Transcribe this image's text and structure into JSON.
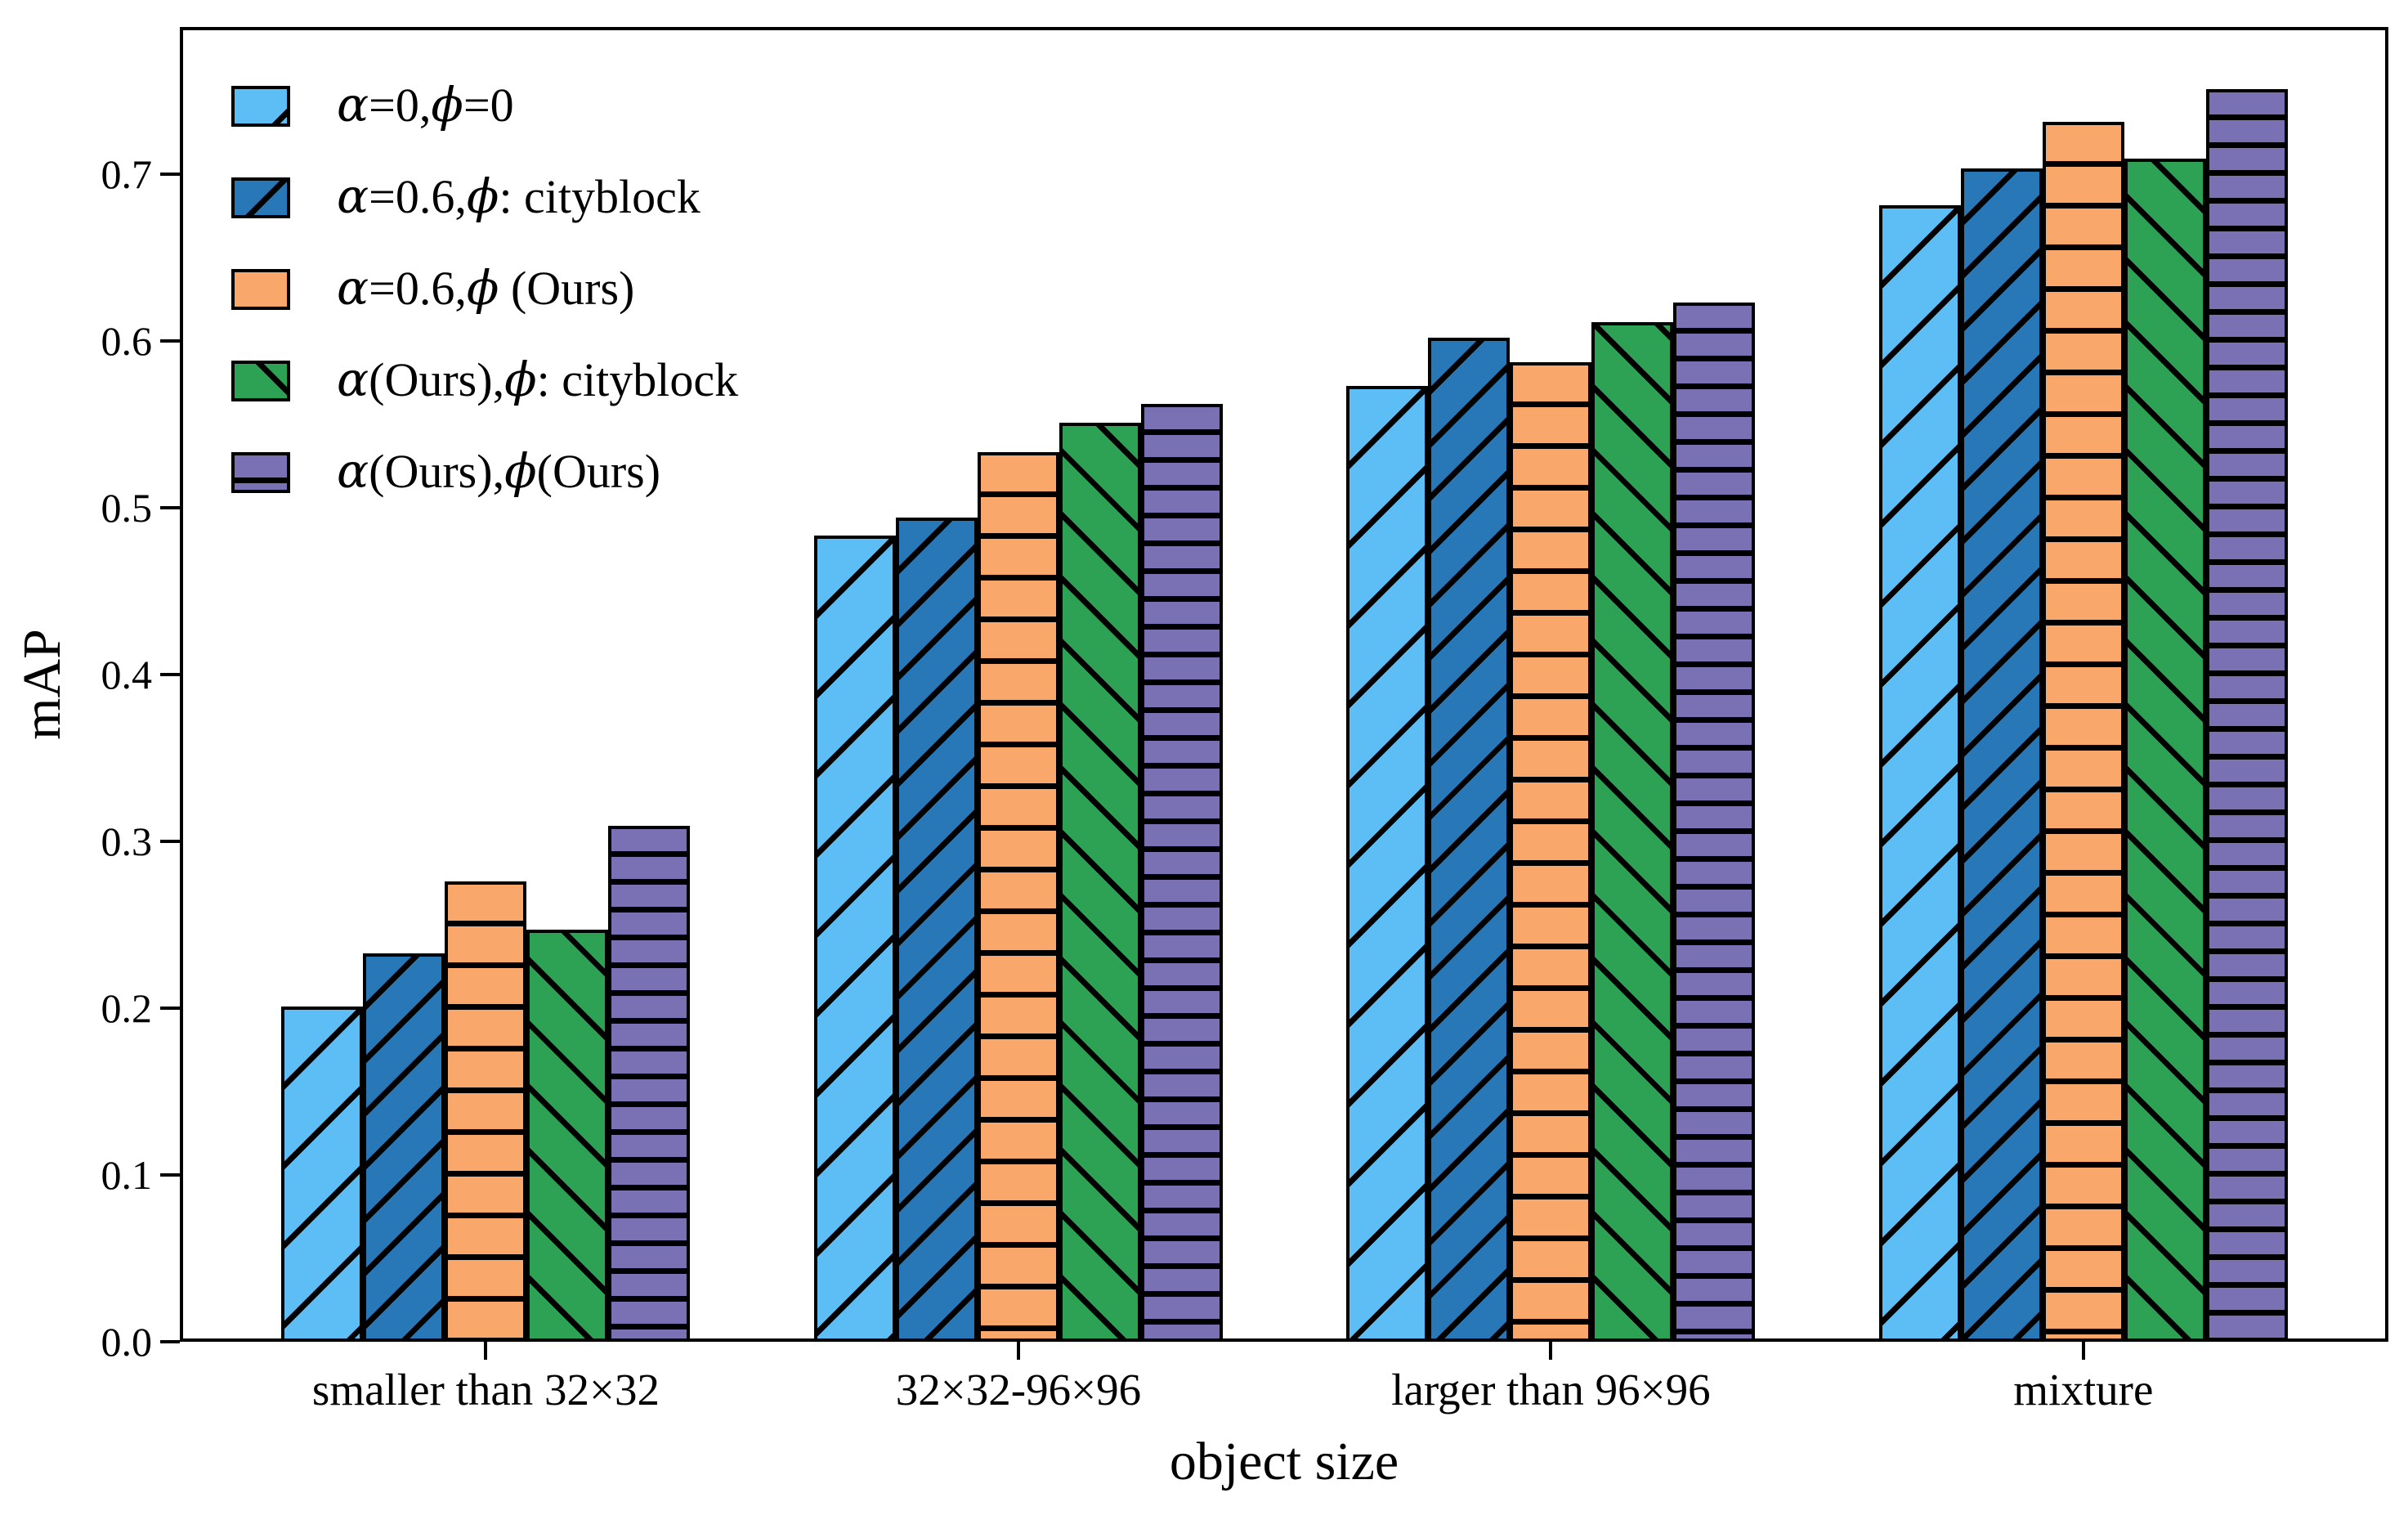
{
  "chart_data": {
    "type": "bar",
    "title": "",
    "xlabel": "object size",
    "ylabel": "mAP",
    "categories": [
      "smaller than 32×32",
      "32×32-96×96",
      "larger than 96×96",
      "mixture"
    ],
    "series": [
      {
        "name": "α=0,ϕ=0",
        "color": "#5dbef5",
        "hatch": "/",
        "values": [
          0.201,
          0.483,
          0.573,
          0.681
        ]
      },
      {
        "name": "α=0.6,ϕ: cityblock",
        "color": "#2878b8",
        "hatch": "//",
        "values": [
          0.233,
          0.494,
          0.602,
          0.703
        ]
      },
      {
        "name": "α=0.6,ϕ (Ours)",
        "color": "#f9a76b",
        "hatch": "-",
        "values": [
          0.276,
          0.533,
          0.587,
          0.731
        ]
      },
      {
        "name": "α(Ours),ϕ: cityblock",
        "color": "#2ea254",
        "hatch": "\\",
        "values": [
          0.247,
          0.551,
          0.611,
          0.709
        ]
      },
      {
        "name": "α(Ours),ϕ(Ours)",
        "color": "#7a70b4",
        "hatch": "--",
        "values": [
          0.309,
          0.562,
          0.623,
          0.751
        ]
      }
    ],
    "yticks": [
      "0.0",
      "0.1",
      "0.2",
      "0.3",
      "0.4",
      "0.5",
      "0.6",
      "0.7"
    ],
    "ylim": [
      0,
      0.788
    ],
    "grid": false,
    "legend_position": "upper left",
    "edge_color": "#000000",
    "background_color": "#ffffff"
  }
}
